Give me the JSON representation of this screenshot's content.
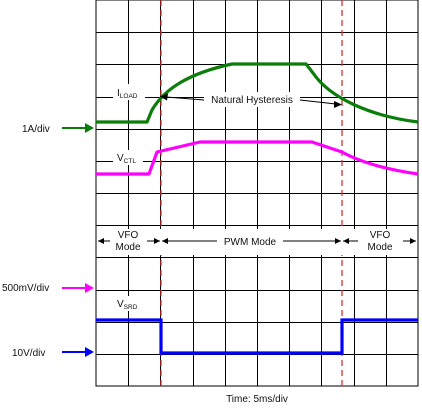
{
  "labels": {
    "i_load": "I",
    "i_load_sub": "LOAD",
    "v_ctl": "V",
    "v_ctl_sub": "CTL",
    "v_srd": "V",
    "v_srd_sub": "SRD",
    "natural_hysteresis": "Natural Hysteresis",
    "time_axis": "Time: 5ms/div"
  },
  "scales": {
    "current": "1A/div",
    "control": "500mV/div",
    "srd": "10V/div"
  },
  "modes": [
    {
      "line1": "VFO",
      "line2": "Mode"
    },
    {
      "line1": "PWM Mode",
      "line2": ""
    },
    {
      "line1": "VFO",
      "line2": "Mode"
    }
  ],
  "colors": {
    "i_load": "#0a7d0a",
    "v_ctl": "#ff00ff",
    "v_srd": "#0000ff",
    "scale_current": "#0a7d0a",
    "scale_control": "#ff00ff",
    "scale_srd": "#0000ff",
    "transition_marker": "#e03030"
  }
}
